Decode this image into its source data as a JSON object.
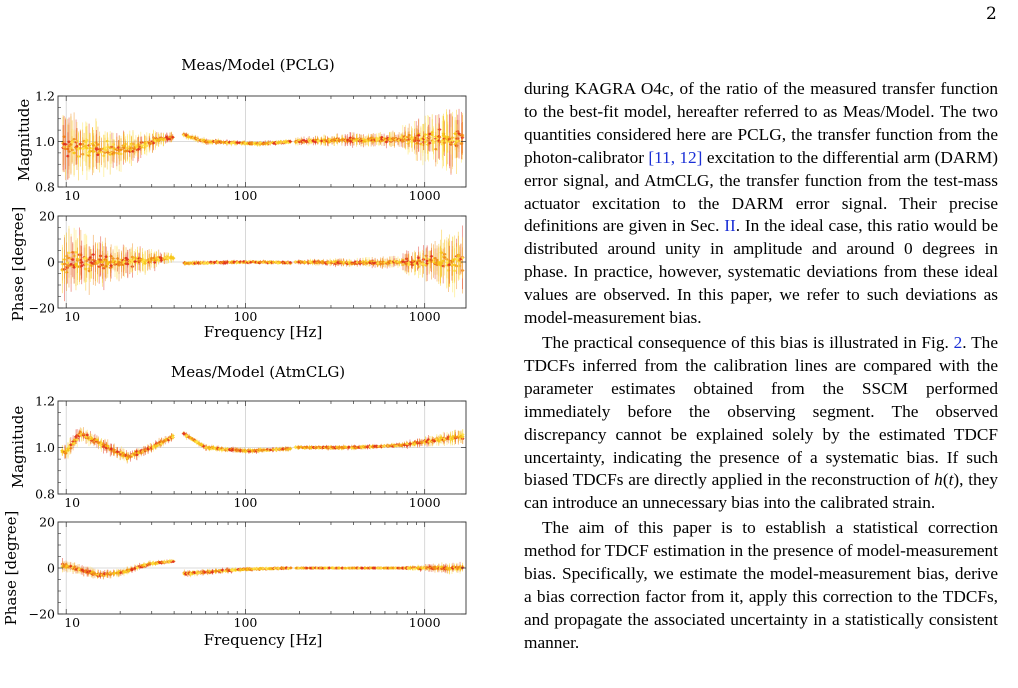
{
  "page_number": "2",
  "figure": {
    "panels": [
      {
        "title": "Meas/Model (PCLG)",
        "mag_ylabel": "Magnitude",
        "mag_yticks": [
          "0.8",
          "1.0",
          "1.2"
        ],
        "mag_ylim": [
          0.8,
          1.2
        ],
        "phase_ylabel": "Phase [degree]",
        "phase_yticks": [
          "−20",
          "0",
          "20"
        ],
        "phase_ylim": [
          -20,
          20
        ],
        "xticks": [
          "10",
          "100",
          "1000"
        ],
        "xlabel": "Frequency [Hz]"
      },
      {
        "title": "Meas/Model (AtmCLG)",
        "mag_ylabel": "Magnitude",
        "mag_yticks": [
          "0.8",
          "1.0",
          "1.2"
        ],
        "mag_ylim": [
          0.8,
          1.2
        ],
        "phase_ylabel": "Phase [degree]",
        "phase_yticks": [
          "−20",
          "0",
          "20"
        ],
        "phase_ylim": [
          -20,
          20
        ],
        "xticks": [
          "10",
          "100",
          "1000"
        ],
        "xlabel": "Frequency [Hz]"
      }
    ],
    "colors": [
      "#e0301e",
      "#f08a17",
      "#f7c61b",
      "#ffe34a"
    ],
    "xlim": [
      9,
      1700
    ],
    "x_scale": "log"
  },
  "chart_data": [
    {
      "type": "scatter",
      "title": "Meas/Model (PCLG)",
      "ylabel": "Magnitude",
      "xlabel": "",
      "x_scale": "log",
      "ylim": [
        0.8,
        1.2
      ],
      "grid": true,
      "segments": [
        {
          "x_range": [
            9.5,
            40
          ],
          "trend": [
            [
              10,
              0.98
            ],
            [
              20,
              0.96
            ],
            [
              30,
              1.0
            ],
            [
              40,
              1.02
            ]
          ],
          "spread": [
            0.08,
            0.012
          ]
        },
        {
          "x_range": [
            45,
            180
          ],
          "trend": [
            [
              45,
              1.03
            ],
            [
              60,
              1.0
            ],
            [
              120,
              0.99
            ],
            [
              180,
              1.0
            ]
          ],
          "spread": [
            0.008,
            0.006
          ]
        },
        {
          "x_range": [
            190,
            750
          ],
          "trend": [
            [
              190,
              1.0
            ],
            [
              350,
              1.005
            ],
            [
              750,
              1.01
            ]
          ],
          "spread": [
            0.01,
            0.02
          ]
        },
        {
          "x_range": [
            750,
            1650
          ],
          "trend": [
            [
              750,
              1.01
            ],
            [
              1650,
              1.01
            ]
          ],
          "spread": [
            0.03,
            0.09
          ]
        }
      ]
    },
    {
      "type": "scatter",
      "title": "",
      "ylabel": "Phase [degree]",
      "xlabel": "Frequency [Hz]",
      "x_scale": "log",
      "ylim": [
        -20,
        20
      ],
      "grid": true,
      "segments": [
        {
          "x_range": [
            9.5,
            40
          ],
          "trend": [
            [
              10,
              0
            ],
            [
              20,
              0
            ],
            [
              30,
              1
            ],
            [
              40,
              2
            ]
          ],
          "spread": [
            8,
            1
          ]
        },
        {
          "x_range": [
            45,
            180
          ],
          "trend": [
            [
              45,
              -0.5
            ],
            [
              100,
              0
            ],
            [
              180,
              -0.3
            ]
          ],
          "spread": [
            0.6,
            0.5
          ]
        },
        {
          "x_range": [
            190,
            750
          ],
          "trend": [
            [
              190,
              0
            ],
            [
              400,
              -0.3
            ],
            [
              750,
              0
            ]
          ],
          "spread": [
            0.6,
            1.5
          ]
        },
        {
          "x_range": [
            750,
            1650
          ],
          "trend": [
            [
              750,
              0
            ],
            [
              1650,
              0
            ]
          ],
          "spread": [
            2,
            8
          ]
        }
      ]
    },
    {
      "type": "scatter",
      "title": "Meas/Model (AtmCLG)",
      "ylabel": "Magnitude",
      "xlabel": "",
      "x_scale": "log",
      "ylim": [
        0.8,
        1.2
      ],
      "grid": true,
      "segments": [
        {
          "x_range": [
            9.5,
            40
          ],
          "trend": [
            [
              10,
              0.98
            ],
            [
              12,
              1.06
            ],
            [
              17,
              1.0
            ],
            [
              22,
              0.96
            ],
            [
              30,
              1.0
            ],
            [
              40,
              1.05
            ]
          ],
          "spread": [
            0.02,
            0.01
          ]
        },
        {
          "x_range": [
            45,
            180
          ],
          "trend": [
            [
              45,
              1.06
            ],
            [
              60,
              1.0
            ],
            [
              100,
              0.985
            ],
            [
              180,
              0.995
            ]
          ],
          "spread": [
            0.008,
            0.006
          ]
        },
        {
          "x_range": [
            190,
            750
          ],
          "trend": [
            [
              190,
              1.0
            ],
            [
              400,
              1.0
            ],
            [
              750,
              1.01
            ]
          ],
          "spread": [
            0.006,
            0.006
          ]
        },
        {
          "x_range": [
            750,
            1650
          ],
          "trend": [
            [
              750,
              1.01
            ],
            [
              1650,
              1.05
            ]
          ],
          "spread": [
            0.008,
            0.02
          ]
        }
      ]
    },
    {
      "type": "scatter",
      "title": "",
      "ylabel": "Phase [degree]",
      "xlabel": "Frequency [Hz]",
      "x_scale": "log",
      "ylim": [
        -20,
        20
      ],
      "grid": true,
      "segments": [
        {
          "x_range": [
            9.5,
            40
          ],
          "trend": [
            [
              10,
              1
            ],
            [
              15,
              -3
            ],
            [
              20,
              -2
            ],
            [
              30,
              2
            ],
            [
              40,
              3
            ]
          ],
          "spread": [
            1.5,
            0.5
          ]
        },
        {
          "x_range": [
            45,
            180
          ],
          "trend": [
            [
              45,
              -2.5
            ],
            [
              100,
              -0.5
            ],
            [
              180,
              0
            ]
          ],
          "spread": [
            0.8,
            0.4
          ]
        },
        {
          "x_range": [
            190,
            750
          ],
          "trend": [
            [
              190,
              0
            ],
            [
              750,
              0
            ]
          ],
          "spread": [
            0.2,
            0.2
          ]
        },
        {
          "x_range": [
            750,
            1650
          ],
          "trend": [
            [
              750,
              0
            ],
            [
              1650,
              0
            ]
          ],
          "spread": [
            0.5,
            1.5
          ]
        }
      ]
    }
  ],
  "text": {
    "para1": [
      {
        "t": "during KAGRA O4c, of the ratio of the measured transfer function to the best-fit model, hereafter referred to as Meas/Model. The two quantities considered here are PCLG, the transfer function from the photon-calibrator "
      },
      {
        "t": "[11, 12]",
        "c": "cite"
      },
      {
        "t": " excitation to the differential arm (DARM) error signal, and AtmCLG, the transfer function from the test-mass actuator excitation to the DARM error signal. Their precise definitions are given in Sec. "
      },
      {
        "t": "II",
        "c": "cite"
      },
      {
        "t": ". In the ideal case, this ratio would be distributed around unity in amplitude and around 0 degrees in phase. In practice, however, systematic deviations from these ideal values are observed. In this paper, we refer to such deviations as model-measurement bias."
      }
    ],
    "para2": [
      {
        "t": "The practical consequence of this bias is illustrated in Fig. "
      },
      {
        "t": "2",
        "c": "cite"
      },
      {
        "t": ". The TDCFs inferred from the calibration lines are compared with the parameter estimates obtained from the SSCM performed immediately before the observing segment. The observed discrepancy cannot be explained solely by the estimated TDCF uncertainty, indicating the presence of a systematic bias. If such biased TDCFs are directly applied in the reconstruction of "
      },
      {
        "t": "h",
        "c": "math"
      },
      {
        "t": "("
      },
      {
        "t": "t",
        "c": "math"
      },
      {
        "t": "), they can introduce an unnecessary bias into the calibrated strain."
      }
    ],
    "para3": [
      {
        "t": "The aim of this paper is to establish a statistical correction method for TDCF estimation in the presence of model-measurement bias. Specifically, we estimate the model-measurement bias, derive a bias correction factor from it, apply this correction to the TDCFs, and propagate the associated uncertainty in a statistically consistent manner."
      }
    ]
  }
}
